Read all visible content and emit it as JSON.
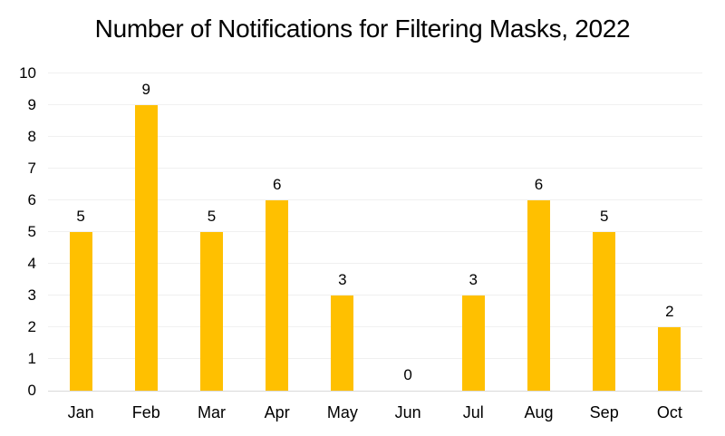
{
  "title": "Number of Notifications for Filtering Masks, 2022",
  "colors": {
    "bar": "#FFC000",
    "gridline": "#f0f0f0",
    "axis_line": "#d9d9d9",
    "text": "#000000",
    "background": "#ffffff"
  },
  "chart_data": {
    "type": "bar",
    "title": "Number of Notifications for Filtering Masks, 2022",
    "categories": [
      "Jan",
      "Feb",
      "Mar",
      "Apr",
      "May",
      "Jun",
      "Jul",
      "Aug",
      "Sep",
      "Oct"
    ],
    "values": [
      5,
      9,
      5,
      6,
      3,
      0,
      3,
      6,
      5,
      2
    ],
    "xlabel": "",
    "ylabel": "",
    "ylim": [
      0,
      10
    ],
    "yticks": [
      0,
      1,
      2,
      3,
      4,
      5,
      6,
      7,
      8,
      9,
      10
    ],
    "grid": true,
    "legend": false,
    "data_labels_shown": true,
    "bar_color": "#FFC000"
  }
}
